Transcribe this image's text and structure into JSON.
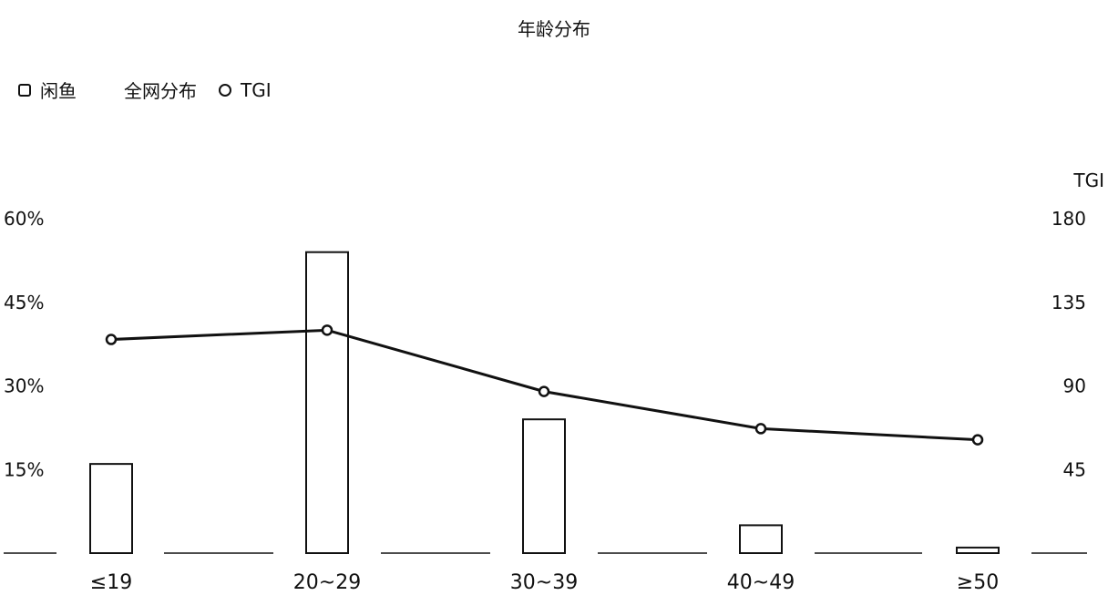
{
  "chart_data": {
    "type": "bar",
    "title": "年龄分布",
    "categories": [
      "≤19",
      "20~29",
      "30~39",
      "40~49",
      "≥50"
    ],
    "series": [
      {
        "name": "闲鱼",
        "type": "bar",
        "axis": "left",
        "values": [
          16,
          54,
          24,
          5,
          1
        ]
      },
      {
        "name": "全网分布",
        "type": "bar",
        "axis": "left",
        "values": [
          0,
          0,
          0,
          0,
          0
        ]
      },
      {
        "name": "TGI",
        "type": "line",
        "axis": "right",
        "values": [
          115,
          120,
          87,
          67,
          61
        ]
      }
    ],
    "left_axis": {
      "ylim": [
        0,
        60
      ],
      "ticks": [
        "60%",
        "45%",
        "30%",
        "15%"
      ],
      "tick_values": [
        60,
        45,
        30,
        15
      ]
    },
    "right_axis": {
      "label": "TGI",
      "ylim": [
        0,
        180
      ],
      "ticks": [
        "180",
        "135",
        "90",
        "45"
      ],
      "tick_values": [
        180,
        135,
        90,
        45
      ]
    },
    "legend": {
      "placement": "top-left",
      "items": [
        "闲鱼",
        "全网分布",
        "TGI"
      ]
    },
    "grid": false
  }
}
